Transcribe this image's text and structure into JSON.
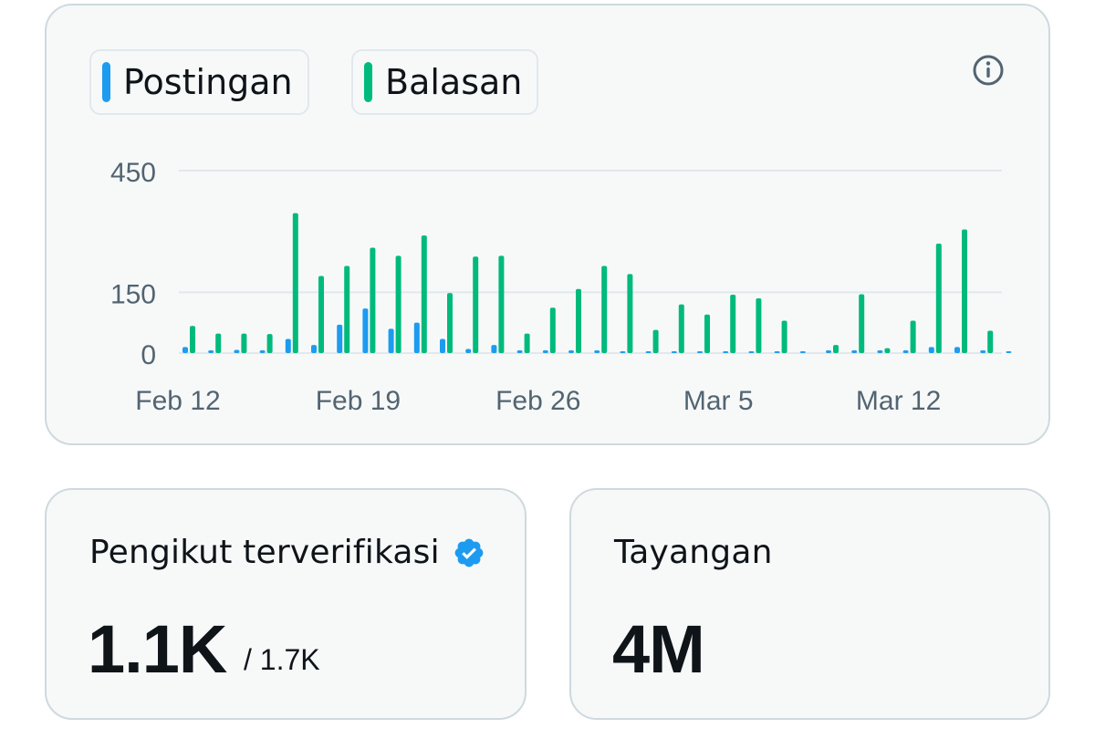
{
  "legend": {
    "posts_label": "Postingan",
    "replies_label": "Balasan",
    "posts_color": "#1d9bf0",
    "replies_color": "#00ba7c"
  },
  "info_icon": "info-circle-icon",
  "chart_data": {
    "type": "bar",
    "y_ticks": [
      "450",
      "150",
      "0"
    ],
    "ylim": [
      0,
      450
    ],
    "grid": true,
    "x_tick_labels": [
      "Feb 12",
      "Feb 19",
      "Feb 26",
      "Mar 5",
      "Mar 12"
    ],
    "x_tick_indices": [
      0,
      7,
      14,
      21,
      28
    ],
    "categories": [
      "Feb 12",
      "Feb 13",
      "Feb 14",
      "Feb 15",
      "Feb 16",
      "Feb 17",
      "Feb 18",
      "Feb 19",
      "Feb 20",
      "Feb 21",
      "Feb 22",
      "Feb 23",
      "Feb 24",
      "Feb 25",
      "Feb 26",
      "Feb 27",
      "Feb 28",
      "Feb 29",
      "Mar 1",
      "Mar 2",
      "Mar 3",
      "Mar 4",
      "Mar 5",
      "Mar 6",
      "Mar 7",
      "Mar 8",
      "Mar 9",
      "Mar 10",
      "Mar 11",
      "Mar 12",
      "Mar 13",
      "Mar 14",
      "Mar 15"
    ],
    "series": [
      {
        "name": "Postingan",
        "color": "#1d9bf0",
        "values": [
          15,
          3,
          8,
          3,
          35,
          20,
          70,
          110,
          60,
          75,
          35,
          10,
          20,
          3,
          3,
          3,
          3,
          0,
          0,
          0,
          0,
          0,
          0,
          0,
          0,
          3,
          3,
          3,
          3,
          15,
          15,
          3,
          0
        ]
      },
      {
        "name": "Balasan",
        "color": "#00ba7c",
        "values": [
          67,
          48,
          48,
          47,
          345,
          190,
          215,
          260,
          240,
          290,
          148,
          238,
          240,
          48,
          112,
          158,
          215,
          195,
          57,
          120,
          95,
          144,
          135,
          80,
          0,
          20,
          145,
          12,
          80,
          270,
          305,
          55,
          0
        ]
      }
    ]
  },
  "followers": {
    "label": "Pengikut terverifikasi",
    "value": "1.1K",
    "total": "/ 1.7K",
    "badge_color": "#1d9bf0"
  },
  "views": {
    "label": "Tayangan",
    "value": "4M"
  }
}
